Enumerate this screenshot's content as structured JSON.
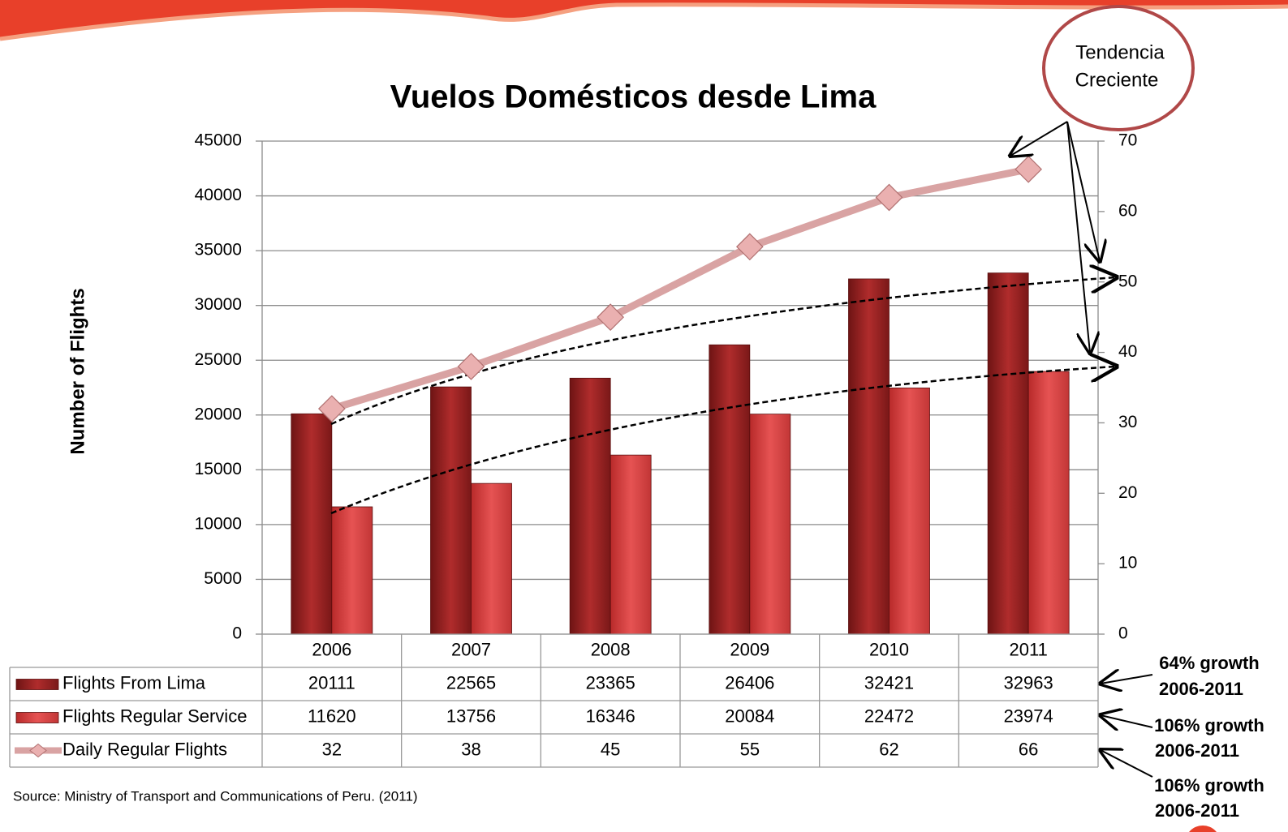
{
  "chart_data": {
    "type": "bar",
    "title": "Vuelos Domésticos desde Lima",
    "y_label": "Number of Flights",
    "categories": [
      "2006",
      "2007",
      "2008",
      "2009",
      "2010",
      "2011"
    ],
    "series": [
      {
        "name": "Flights From Lima",
        "type": "bar",
        "color": "#9e2424",
        "values": [
          20111,
          22565,
          23365,
          26406,
          32421,
          32963
        ]
      },
      {
        "name": "Flights Regular Service",
        "type": "bar",
        "color": "#d9413f",
        "values": [
          11620,
          13756,
          16346,
          20084,
          22472,
          23974
        ]
      },
      {
        "name": "Daily Regular Flights",
        "type": "line",
        "axis": "y2",
        "color": "#d9a3a3",
        "values": [
          32,
          38,
          45,
          55,
          62,
          66
        ]
      }
    ],
    "ylim": [
      0,
      45000
    ],
    "yticks": [
      0,
      5000,
      10000,
      15000,
      20000,
      25000,
      30000,
      35000,
      40000,
      45000
    ],
    "y2lim": [
      0,
      70
    ],
    "y2ticks": [
      0,
      10,
      20,
      30,
      40,
      50,
      60,
      70
    ],
    "grid": true,
    "annotations": [
      {
        "lines": [
          "Tendencia",
          "Creciente"
        ]
      },
      {
        "lines": [
          "64% growth",
          "2006-2011"
        ]
      },
      {
        "lines": [
          "106% growth",
          "2006-2011"
        ]
      },
      {
        "lines": [
          "106% growth",
          "2006-2011"
        ]
      }
    ],
    "source": "Source: Ministry of Transport and Communications of Peru. (2011)"
  }
}
